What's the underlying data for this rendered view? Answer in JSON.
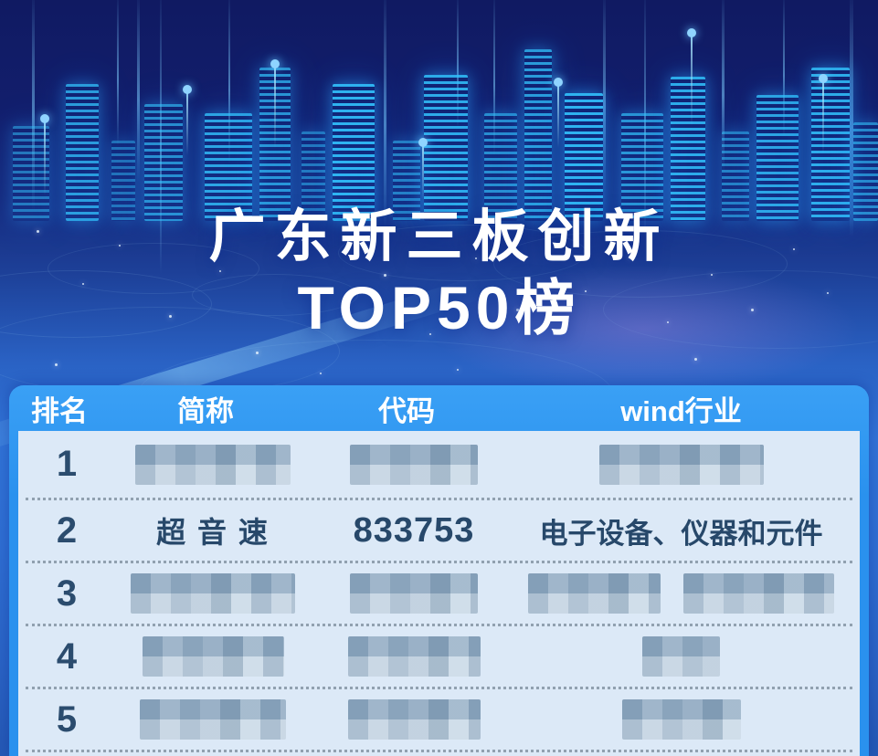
{
  "page": {
    "title_line1": "广东新三板创新",
    "title_line2": "TOP50榜"
  },
  "table": {
    "headers": {
      "rank": "排名",
      "name": "简称",
      "code": "代码",
      "industry": "wind行业"
    },
    "rows": [
      {
        "rank": "1",
        "name": "",
        "code": "",
        "industry": "",
        "censored": true
      },
      {
        "rank": "2",
        "name": "超 音 速",
        "code": "833753",
        "industry": "电子设备、仪器和元件",
        "censored": false
      },
      {
        "rank": "3",
        "name": "",
        "code": "",
        "industry": "",
        "censored": true
      },
      {
        "rank": "4",
        "name": "",
        "code": "",
        "industry": "",
        "censored": true
      },
      {
        "rank": "5",
        "name": "",
        "code": "",
        "industry": "",
        "censored": true
      }
    ]
  },
  "colors": {
    "frame_blue": "#2a91ee",
    "header_text": "#ffffff",
    "body_light_blue": "#dce9f7",
    "row_text_navy": "#27486a",
    "background_navy": "#101a62",
    "city_glow_cyan": "#32c3ff"
  },
  "chart_data": {
    "type": "table",
    "title": "广东新三板创新 TOP50榜",
    "columns": [
      "排名",
      "简称",
      "代码",
      "wind行业"
    ],
    "rows": [
      [
        "1",
        "(censored)",
        "(censored)",
        "(censored)"
      ],
      [
        "2",
        "超 音 速",
        "833753",
        "电子设备、仪器和元件"
      ],
      [
        "3",
        "(censored)",
        "(censored)",
        "(censored)"
      ],
      [
        "4",
        "(censored)",
        "(censored)",
        "(censored)"
      ],
      [
        "5",
        "(censored)",
        "(censored)",
        "(censored)"
      ]
    ],
    "layout": {
      "header_bg": "#2a91ee",
      "body_bg": "#dce9f7",
      "visible_rows": 5,
      "list_length": 50
    }
  }
}
